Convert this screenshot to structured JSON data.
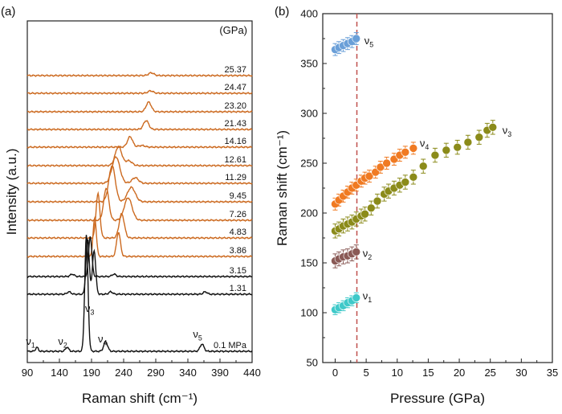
{
  "chart_data": [
    {
      "type": "line",
      "panel_label": "(a)",
      "xlabel": "Raman shift (cm⁻¹)",
      "ylabel": "Intensity (a.u.)",
      "xlim": [
        90,
        440
      ],
      "xticks": [
        90,
        140,
        190,
        240,
        290,
        340,
        390,
        440
      ],
      "unit_label": "(GPa)",
      "series": [
        {
          "name": "25.37",
          "color": "#cc6a20",
          "peaks": [
            [
              283,
              4,
              3.5
            ]
          ]
        },
        {
          "name": "24.47",
          "color": "#cc6a20",
          "peaks": [
            [
              282,
              4,
              3
            ]
          ]
        },
        {
          "name": "23.20",
          "color": "#cc6a20",
          "peaks": [
            [
              279,
              4,
              12
            ]
          ]
        },
        {
          "name": "21.43",
          "color": "#cc6a20",
          "peaks": [
            [
              275,
              4,
              11
            ]
          ]
        },
        {
          "name": "14.16",
          "color": "#cc6a20",
          "peaks": [
            [
              250,
              4,
              13
            ],
            [
              268,
              5,
              2
            ]
          ]
        },
        {
          "name": "12.61",
          "color": "#cc6a20",
          "peaks": [
            [
              232,
              5,
              24
            ],
            [
              248,
              5,
              6
            ]
          ]
        },
        {
          "name": "11.29",
          "color": "#cc6a20",
          "peaks": [
            [
              228,
              6,
              33
            ],
            [
              258,
              5,
              7
            ]
          ]
        },
        {
          "name": "9.45",
          "color": "#cc6a20",
          "peaks": [
            [
              222,
              5,
              45
            ],
            [
              252,
              6,
              18
            ]
          ]
        },
        {
          "name": "7.26",
          "color": "#cc6a20",
          "peaks": [
            [
              213,
              4,
              40
            ],
            [
              247,
              6,
              28
            ]
          ]
        },
        {
          "name": "4.83",
          "color": "#cc6a20",
          "peaks": [
            [
              200,
              3,
              55
            ],
            [
              237,
              4,
              30
            ]
          ]
        },
        {
          "name": "3.86",
          "color": "#cc6a20",
          "peaks": [
            [
              195,
              2.5,
              48
            ],
            [
              232,
              3,
              30
            ]
          ]
        },
        {
          "name": "3.15",
          "color": "#111111",
          "peaks": [
            [
              188,
              2.5,
              50
            ],
            [
              160,
              3,
              3
            ],
            [
              225,
              3,
              3
            ]
          ]
        },
        {
          "name": "1.31",
          "color": "#111111",
          "peaks": [
            [
              184,
              2.5,
              68
            ],
            [
              194,
              2.5,
              55
            ],
            [
              155,
              3,
              3
            ],
            [
              220,
              3,
              3
            ],
            [
              367,
              3,
              3
            ]
          ]
        },
        {
          "name": "0.1 MPa",
          "color": "#111111",
          "peaks": [
            [
              182,
              2.5,
              145
            ],
            [
              105,
              2,
              5
            ],
            [
              152,
              2.5,
              5
            ],
            [
              212,
              3,
              12
            ],
            [
              362,
              3,
              9
            ]
          ]
        }
      ],
      "mode_labels": [
        {
          "mode": "ν",
          "sub": "1",
          "x": 98
        },
        {
          "mode": "ν",
          "sub": "2",
          "x": 148
        },
        {
          "mode": "ν",
          "sub": "3",
          "x": 190
        },
        {
          "mode": "ν",
          "sub": "4",
          "x": 210
        },
        {
          "mode": "ν",
          "sub": "5",
          "x": 358
        }
      ]
    },
    {
      "type": "scatter",
      "panel_label": "(b)",
      "xlabel": "Pressure (GPa)",
      "ylabel": "Raman shift (cm⁻¹)",
      "xlim": [
        -2,
        35
      ],
      "ylim": [
        50,
        400
      ],
      "xticks": [
        0,
        5,
        10,
        15,
        20,
        25,
        30,
        35
      ],
      "yticks": [
        50,
        100,
        150,
        200,
        250,
        300,
        350,
        400
      ],
      "reference_line_x": 3.5,
      "series": [
        {
          "name": "ν",
          "sub": "5",
          "color": "#6a9fd8",
          "x": [
            0,
            0.6,
            1.3,
            2.0,
            2.7,
            3.4
          ],
          "y": [
            364,
            366,
            368,
            370,
            372,
            375
          ],
          "err": 6
        },
        {
          "name": "ν",
          "sub": "4",
          "color": "#f07a22",
          "x": [
            0,
            0.6,
            1.3,
            2.0,
            2.7,
            3.4,
            4.2,
            4.8,
            5.5,
            6.5,
            7.3,
            8.3,
            9.5,
            10.4,
            11.3,
            12.6
          ],
          "y": [
            209,
            213,
            217,
            221,
            225,
            228,
            232,
            235,
            237,
            241,
            246,
            250,
            254,
            258,
            261,
            265
          ],
          "err": 6
        },
        {
          "name": "ν",
          "sub": "3",
          "color": "#8b8b1a",
          "x": [
            0,
            0.6,
            1.3,
            2.0,
            2.7,
            3.4,
            4.2,
            4.8,
            5.8,
            6.8,
            7.9,
            8.6,
            9.5,
            10.4,
            11.3,
            12.6,
            14.2,
            16.1,
            17.9,
            19.7,
            21.4,
            23.2,
            24.5,
            25.4
          ],
          "y": [
            182,
            184,
            187,
            189,
            191,
            194,
            197,
            199,
            205,
            212,
            219,
            222,
            225,
            228,
            231,
            236,
            247,
            258,
            263,
            266,
            271,
            276,
            283,
            286
          ],
          "err": 7
        },
        {
          "name": "ν",
          "sub": "2",
          "color": "#8a5a56",
          "x": [
            0,
            0.6,
            1.3,
            2.0,
            2.7,
            3.4
          ],
          "y": [
            152,
            154,
            156,
            157,
            159,
            161
          ],
          "err": 7
        },
        {
          "name": "ν",
          "sub": "1",
          "color": "#3fc9c9",
          "x": [
            0,
            0.6,
            1.3,
            2.0,
            2.7,
            3.4
          ],
          "y": [
            103,
            105,
            107,
            110,
            112,
            115
          ],
          "err": 5
        }
      ]
    }
  ]
}
